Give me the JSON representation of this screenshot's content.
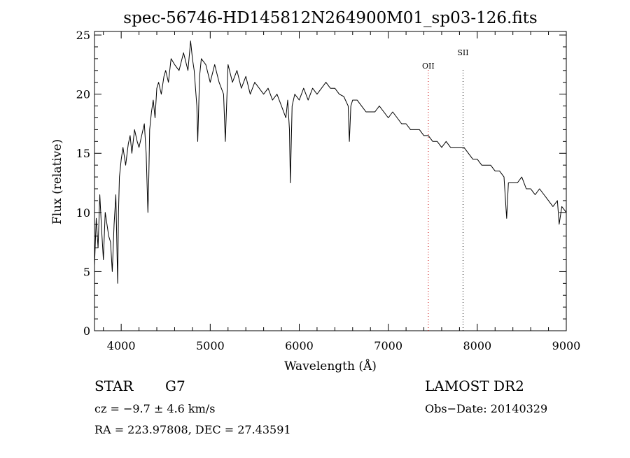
{
  "chart_data": {
    "type": "line",
    "title": "spec-56746-HD145812N264900M01_sp03-126.fits",
    "xlabel": "Wavelength (Å)",
    "ylabel": "Flux (relative)",
    "xlim": [
      3700,
      9000
    ],
    "ylim": [
      0,
      25.3
    ],
    "xticks": [
      "4000",
      "5000",
      "6000",
      "7000",
      "8000",
      "9000"
    ],
    "yticks": [
      "0",
      "5",
      "10",
      "15",
      "20",
      "25"
    ],
    "grid": false,
    "series": [
      {
        "x": [
          3700,
          3720,
          3740,
          3760,
          3780,
          3800,
          3820,
          3840,
          3860,
          3880,
          3900,
          3920,
          3940,
          3960,
          3970,
          3980,
          4000,
          4020,
          4050,
          4080,
          4100,
          4120,
          4150,
          4180,
          4200,
          4230,
          4260,
          4280,
          4300,
          4310,
          4320,
          4340,
          4360,
          4380,
          4400,
          4420,
          4450,
          4480,
          4500,
          4530,
          4560,
          4600,
          4650,
          4700,
          4750,
          4780,
          4800,
          4820,
          4850,
          4860,
          4880,
          4900,
          4950,
          5000,
          5050,
          5100,
          5150,
          5170,
          5200,
          5250,
          5300,
          5350,
          5400,
          5450,
          5500,
          5550,
          5600,
          5650,
          5700,
          5750,
          5800,
          5850,
          5870,
          5890,
          5900,
          5920,
          5950,
          6000,
          6050,
          6100,
          6150,
          6200,
          6250,
          6300,
          6350,
          6400,
          6450,
          6500,
          6550,
          6563,
          6580,
          6600,
          6650,
          6700,
          6750,
          6800,
          6850,
          6900,
          6950,
          7000,
          7050,
          7100,
          7150,
          7200,
          7250,
          7300,
          7350,
          7400,
          7450,
          7500,
          7550,
          7600,
          7650,
          7700,
          7750,
          7800,
          7850,
          7900,
          7950,
          8000,
          8050,
          8100,
          8150,
          8200,
          8250,
          8300,
          8330,
          8350,
          8400,
          8450,
          8500,
          8550,
          8600,
          8650,
          8700,
          8750,
          8800,
          8850,
          8900,
          8920,
          8950,
          9000
        ],
        "values": [
          5.5,
          9.5,
          7.0,
          11.5,
          8.5,
          6.0,
          10.0,
          9.0,
          8.0,
          7.5,
          5.0,
          9.0,
          11.5,
          4.0,
          10.0,
          13.0,
          14.5,
          15.5,
          14.0,
          15.8,
          16.5,
          15.0,
          17.0,
          16.0,
          15.5,
          16.5,
          17.5,
          15.0,
          10.0,
          13.0,
          17.0,
          18.5,
          19.5,
          18.0,
          20.5,
          21.0,
          20.0,
          21.5,
          22.0,
          21.0,
          23.0,
          22.5,
          22.0,
          23.5,
          22.0,
          24.5,
          23.0,
          22.0,
          19.0,
          16.0,
          21.5,
          23.0,
          22.5,
          21.0,
          22.5,
          21.0,
          20.0,
          16.0,
          22.5,
          21.0,
          22.0,
          20.5,
          21.5,
          20.0,
          21.0,
          20.5,
          20.0,
          20.5,
          19.5,
          20.0,
          19.0,
          18.0,
          19.5,
          17.0,
          12.5,
          19.0,
          20.0,
          19.5,
          20.5,
          19.5,
          20.5,
          20.0,
          20.5,
          21.0,
          20.5,
          20.5,
          20.0,
          19.8,
          19.0,
          16.0,
          19.0,
          19.5,
          19.5,
          19.0,
          18.5,
          18.5,
          18.5,
          19.0,
          18.5,
          18.0,
          18.5,
          18.0,
          17.5,
          17.5,
          17.0,
          17.0,
          17.0,
          16.5,
          16.5,
          16.0,
          16.0,
          15.5,
          16.0,
          15.5,
          15.5,
          15.5,
          15.5,
          15.0,
          14.5,
          14.5,
          14.0,
          14.0,
          14.0,
          13.5,
          13.5,
          13.0,
          9.5,
          12.5,
          12.5,
          12.5,
          13.0,
          12.0,
          12.0,
          11.5,
          12.0,
          11.5,
          11.0,
          10.5,
          11.0,
          9.0,
          10.5,
          10.0
        ]
      }
    ],
    "annotations": [
      {
        "label": "OII",
        "x": 7450,
        "color": "#cc0000"
      },
      {
        "label": "SII",
        "x": 7840,
        "color": "#000000"
      }
    ]
  },
  "footer": {
    "object_class": "STAR",
    "subclass": "G7",
    "cz": "cz = −9.7 ± 4.6 km/s",
    "coords": "RA = 223.97808, DEC =  27.43591",
    "survey": "LAMOST DR2",
    "obs_date": "Obs−Date: 20140329"
  }
}
